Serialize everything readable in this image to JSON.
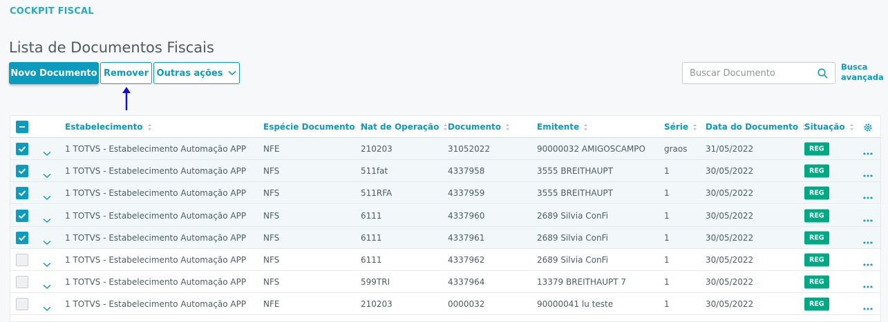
{
  "header": {
    "title": "COCKPIT FISCAL"
  },
  "page": {
    "title": "Lista de Documentos Fiscais"
  },
  "actions": {
    "primary": "Novo Documento",
    "remove": "Remover",
    "more": "Outras ações"
  },
  "search": {
    "placeholder": "Buscar Documento",
    "advanced": "Busca avançada"
  },
  "table": {
    "columns": [
      "Estabelecimento",
      "Espécie Documento",
      "Nat de Operação",
      "Documento",
      "Emitente",
      "Série",
      "Data do Documento",
      "Situação"
    ],
    "rows": [
      {
        "checked": true,
        "cells": [
          "1 TOTVS - Estabelecimento Automação APP",
          "NFE",
          "210203",
          "31052022",
          "90000032 AMIGOSCAMPO",
          "graos",
          "31/05/2022",
          "REG"
        ]
      },
      {
        "checked": true,
        "cells": [
          "1 TOTVS - Estabelecimento Automação APP",
          "NFS",
          "511fat",
          "4337958",
          "3555 BREITHAUPT",
          "1",
          "30/05/2022",
          "REG"
        ]
      },
      {
        "checked": true,
        "cells": [
          "1 TOTVS - Estabelecimento Automação APP",
          "NFS",
          "511RFA",
          "4337959",
          "3555 BREITHAUPT",
          "1",
          "30/05/2022",
          "REG"
        ]
      },
      {
        "checked": true,
        "cells": [
          "1 TOTVS - Estabelecimento Automação APP",
          "NFS",
          "6111",
          "4337960",
          "2689 Silvia ConFi",
          "1",
          "30/05/2022",
          "REG"
        ]
      },
      {
        "checked": true,
        "cells": [
          "1 TOTVS - Estabelecimento Automação APP",
          "NFS",
          "6111",
          "4337961",
          "2689 Silvia ConFi",
          "1",
          "30/05/2022",
          "REG"
        ]
      },
      {
        "checked": false,
        "cells": [
          "1 TOTVS - Estabelecimento Automação APP",
          "NFS",
          "6111",
          "4337962",
          "2689 Silvia ConFi",
          "1",
          "30/05/2022",
          "REG"
        ]
      },
      {
        "checked": false,
        "cells": [
          "1 TOTVS - Estabelecimento Automação APP",
          "NFS",
          "599TRI",
          "4337964",
          "13379 BREITHAUPT 7",
          "1",
          "30/05/2022",
          "REG"
        ]
      },
      {
        "checked": false,
        "cells": [
          "1 TOTVS - Estabelecimento Automação APP",
          "NFE",
          "210203",
          "0000032",
          "90000041 lu teste",
          "1",
          "30/05/2022",
          "REG"
        ]
      }
    ]
  }
}
